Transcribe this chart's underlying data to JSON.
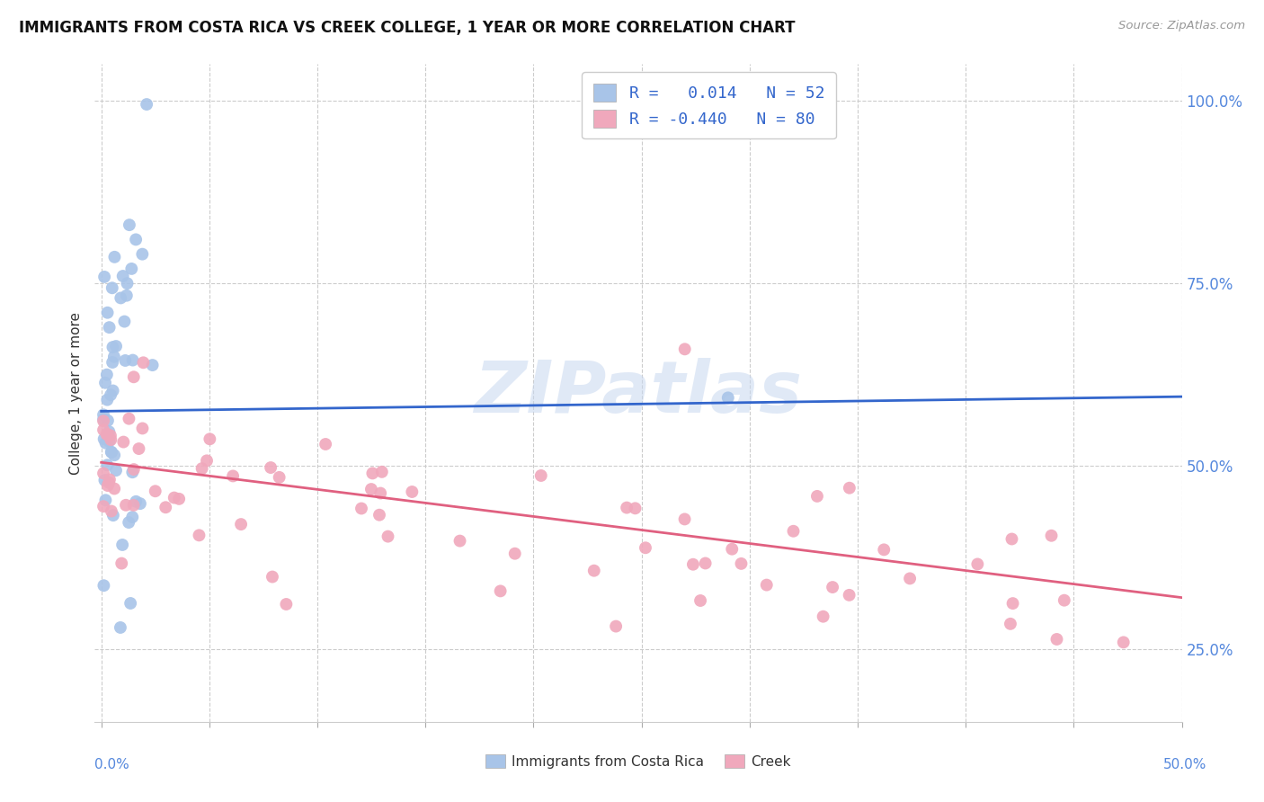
{
  "title": "IMMIGRANTS FROM COSTA RICA VS CREEK COLLEGE, 1 YEAR OR MORE CORRELATION CHART",
  "source": "Source: ZipAtlas.com",
  "ylabel": "College, 1 year or more",
  "watermark": "ZIPatlas",
  "legend_label1": "Immigrants from Costa Rica",
  "legend_label2": "Creek",
  "R1": 0.014,
  "N1": 52,
  "R2": -0.44,
  "N2": 80,
  "blue_color": "#a8c4e8",
  "pink_color": "#f0a8bc",
  "line_blue": "#3366cc",
  "line_pink": "#e06080",
  "xmin": 0.0,
  "xmax": 0.5,
  "ymin": 0.15,
  "ymax": 1.05,
  "ytick_vals": [
    0.25,
    0.5,
    0.75,
    1.0
  ],
  "blue_line_intercept": 0.575,
  "blue_line_slope": 0.04,
  "pink_line_intercept": 0.505,
  "pink_line_slope": -0.37
}
